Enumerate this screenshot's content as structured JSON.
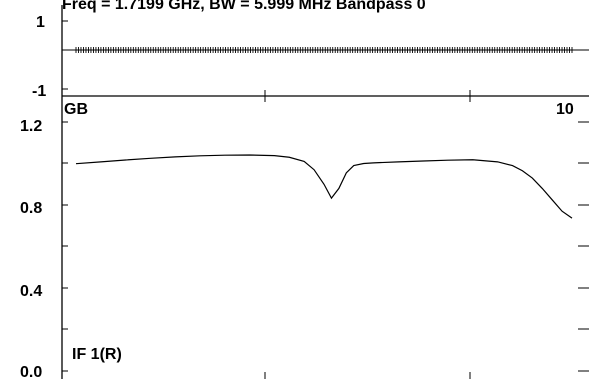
{
  "header_text": "Freq = 1.7199 GHz, BW = 5.999 MHz  Bandpass 0",
  "chart_data": [
    {
      "type": "scatter",
      "title": "",
      "ylim": [
        -1,
        1
      ],
      "ytick_labels": [
        "1",
        "-1"
      ],
      "series": [
        {
          "points_count": 200,
          "x": [
            0,
            1
          ],
          "y": [
            0,
            0
          ]
        }
      ]
    },
    {
      "type": "line",
      "title": "",
      "corner_labels": {
        "top_left": "GB",
        "top_right": "10",
        "bottom_left": "IF 1(R)"
      },
      "xlim": [
        0,
        10
      ],
      "ylim": [
        0.0,
        1.2
      ],
      "ytick_labels": [
        "1.2",
        "0.8",
        "0.4",
        "0.0"
      ],
      "series": [
        {
          "x": [
            0.0,
            0.5,
            1.0,
            1.5,
            2.0,
            2.5,
            3.0,
            3.5,
            4.0,
            4.3,
            4.6,
            4.8,
            5.0,
            5.15,
            5.3,
            5.45,
            5.6,
            5.8,
            6.0,
            6.5,
            7.0,
            7.5,
            8.0,
            8.5,
            8.8,
            9.0,
            9.2,
            9.4,
            9.6,
            9.8,
            10.0
          ],
          "y": [
            0.999,
            1.008,
            1.017,
            1.025,
            1.032,
            1.037,
            1.04,
            1.041,
            1.038,
            1.03,
            1.01,
            0.97,
            0.9,
            0.833,
            0.88,
            0.955,
            0.99,
            1.0,
            1.003,
            1.008,
            1.012,
            1.016,
            1.018,
            1.008,
            0.99,
            0.965,
            0.93,
            0.88,
            0.825,
            0.77,
            0.737
          ]
        }
      ]
    }
  ]
}
